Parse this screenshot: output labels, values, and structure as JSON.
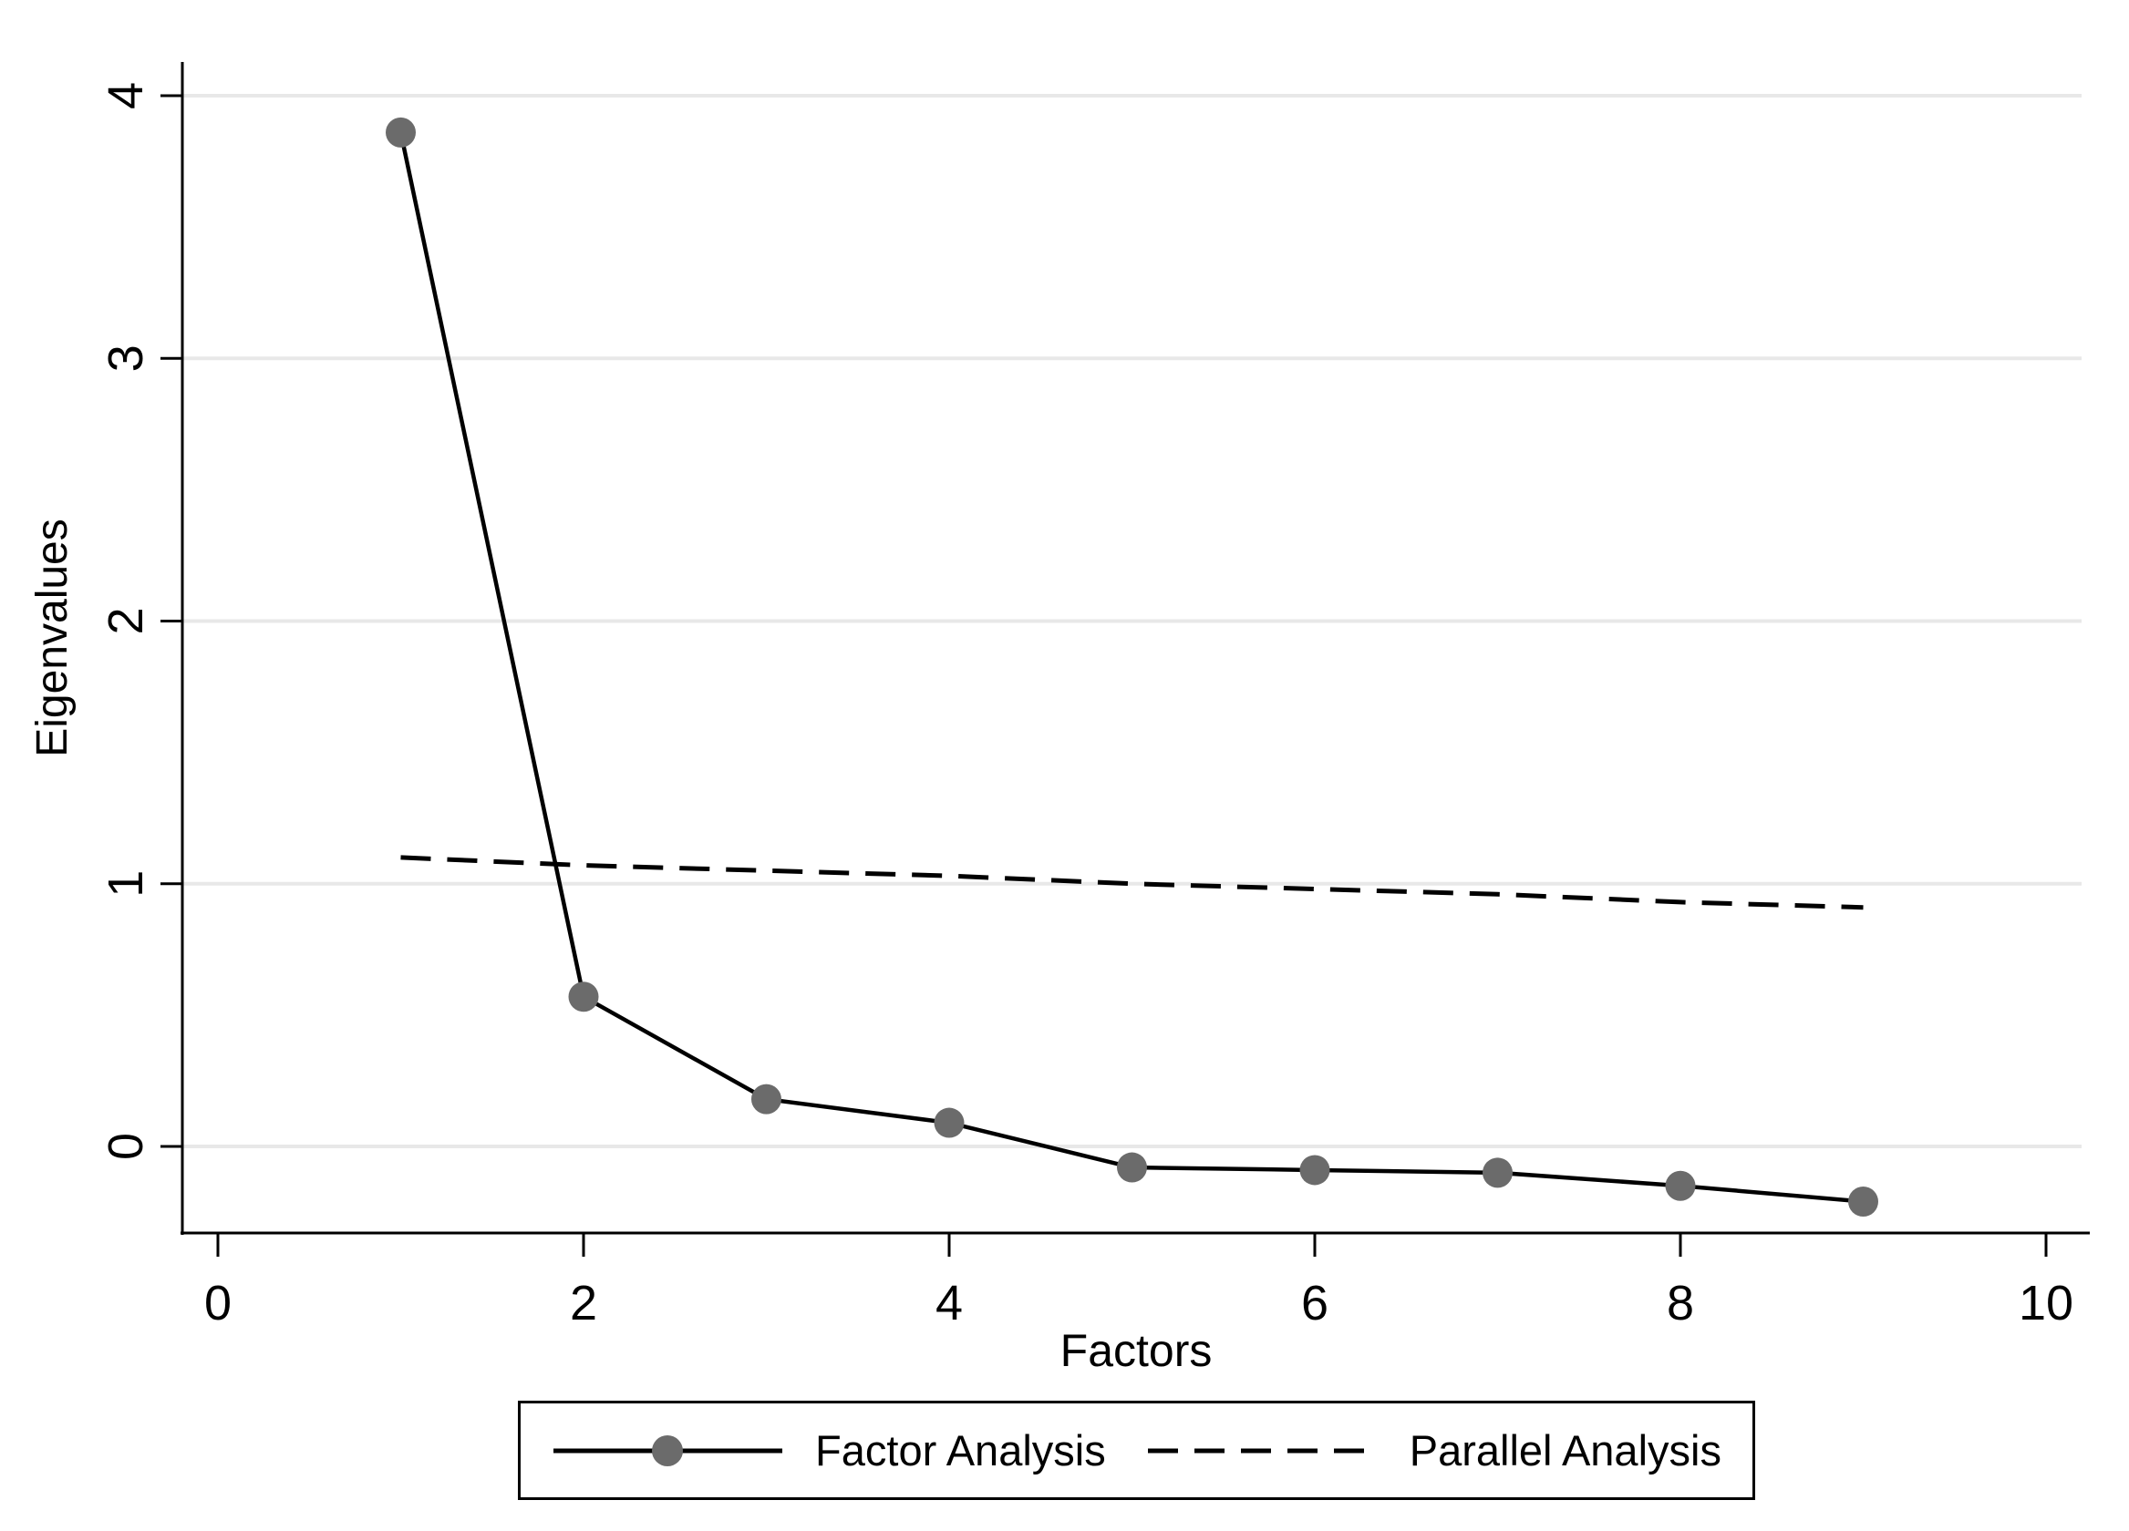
{
  "figure": {
    "kind": "stata-scree-plot",
    "background": "#ffffff"
  },
  "chart_data": {
    "type": "line",
    "title": "",
    "xlabel": "Factors",
    "ylabel": "Eigenvalues",
    "x": [
      1,
      2,
      3,
      4,
      5,
      6,
      7,
      8,
      9
    ],
    "series": [
      {
        "name": "Factor Analysis",
        "line_style": "solid",
        "marker": "circle",
        "marker_color": "#6b6b6b",
        "line_color": "#000000",
        "values": [
          3.86,
          0.57,
          0.18,
          0.09,
          -0.08,
          -0.09,
          -0.1,
          -0.15,
          -0.21
        ]
      },
      {
        "name": "Parallel Analysis",
        "line_style": "dashed",
        "marker": "none",
        "line_color": "#000000",
        "values": [
          1.1,
          1.07,
          1.05,
          1.03,
          1.0,
          0.98,
          0.96,
          0.93,
          0.91
        ]
      }
    ],
    "x_ticks": [
      0,
      2,
      4,
      6,
      8,
      10
    ],
    "y_ticks": [
      0,
      1,
      2,
      3,
      4
    ],
    "xlim": [
      -0.2,
      10.25
    ],
    "ylim": [
      -0.33,
      4.12
    ],
    "grid": "horizontal-only",
    "grid_color": "#e8e8e8",
    "axis_color": "#000000",
    "text_color": "#000000",
    "legend_position": "bottom-center-boxed"
  }
}
